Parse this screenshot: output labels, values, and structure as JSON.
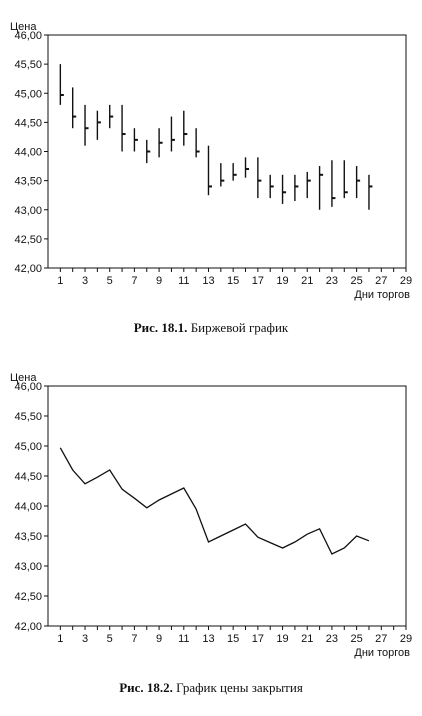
{
  "figures": [
    {
      "caption_label": "Рис. 18.1.",
      "caption_text": " Биржевой график"
    },
    {
      "caption_label": "Рис. 18.2.",
      "caption_text": " График цены закрытия"
    }
  ],
  "chart_data": [
    {
      "type": "ohlc",
      "ylabel": "Цена",
      "xlabel": "Дни торгов",
      "ylim": [
        42.0,
        46.0
      ],
      "xlim": [
        0,
        29
      ],
      "y_ticks": [
        "42,00",
        "42,50",
        "43,00",
        "43,50",
        "44,00",
        "44,50",
        "45,00",
        "45,50",
        "46,00"
      ],
      "x_ticks": [
        "1",
        "3",
        "5",
        "7",
        "9",
        "11",
        "13",
        "15",
        "17",
        "19",
        "21",
        "23",
        "25",
        "27",
        "29"
      ],
      "bars": [
        {
          "x": 1,
          "high": 45.5,
          "low": 44.8,
          "close": 44.97
        },
        {
          "x": 2,
          "high": 45.1,
          "low": 44.4,
          "close": 44.6
        },
        {
          "x": 3,
          "high": 44.8,
          "low": 44.1,
          "close": 44.4
        },
        {
          "x": 4,
          "high": 44.7,
          "low": 44.2,
          "close": 44.5
        },
        {
          "x": 5,
          "high": 44.8,
          "low": 44.4,
          "close": 44.6
        },
        {
          "x": 6,
          "high": 44.8,
          "low": 44.0,
          "close": 44.3
        },
        {
          "x": 7,
          "high": 44.4,
          "low": 44.0,
          "close": 44.2
        },
        {
          "x": 8,
          "high": 44.2,
          "low": 43.8,
          "close": 44.0
        },
        {
          "x": 9,
          "high": 44.4,
          "low": 43.9,
          "close": 44.15
        },
        {
          "x": 10,
          "high": 44.6,
          "low": 44.0,
          "close": 44.2
        },
        {
          "x": 11,
          "high": 44.7,
          "low": 44.1,
          "close": 44.3
        },
        {
          "x": 12,
          "high": 44.4,
          "low": 43.9,
          "close": 44.0
        },
        {
          "x": 13,
          "high": 44.1,
          "low": 43.25,
          "close": 43.4
        },
        {
          "x": 14,
          "high": 43.8,
          "low": 43.4,
          "close": 43.5
        },
        {
          "x": 15,
          "high": 43.8,
          "low": 43.5,
          "close": 43.6
        },
        {
          "x": 16,
          "high": 43.9,
          "low": 43.55,
          "close": 43.7
        },
        {
          "x": 17,
          "high": 43.9,
          "low": 43.2,
          "close": 43.5
        },
        {
          "x": 18,
          "high": 43.6,
          "low": 43.2,
          "close": 43.4
        },
        {
          "x": 19,
          "high": 43.6,
          "low": 43.1,
          "close": 43.3
        },
        {
          "x": 20,
          "high": 43.6,
          "low": 43.15,
          "close": 43.4
        },
        {
          "x": 21,
          "high": 43.65,
          "low": 43.2,
          "close": 43.5
        },
        {
          "x": 22,
          "high": 43.75,
          "low": 43.0,
          "close": 43.6
        },
        {
          "x": 23,
          "high": 43.85,
          "low": 43.05,
          "close": 43.2
        },
        {
          "x": 24,
          "high": 43.85,
          "low": 43.2,
          "close": 43.3
        },
        {
          "x": 25,
          "high": 43.75,
          "low": 43.2,
          "close": 43.5
        },
        {
          "x": 26,
          "high": 43.6,
          "low": 43.0,
          "close": 43.4
        }
      ]
    },
    {
      "type": "line",
      "ylabel": "Цена",
      "xlabel": "Дни торгов",
      "ylim": [
        42.0,
        46.0
      ],
      "xlim": [
        0,
        29
      ],
      "y_ticks": [
        "42,00",
        "42,50",
        "43,00",
        "43,50",
        "44,00",
        "44,50",
        "45,00",
        "45,50",
        "46,00"
      ],
      "x_ticks": [
        "1",
        "3",
        "5",
        "7",
        "9",
        "11",
        "13",
        "15",
        "17",
        "19",
        "21",
        "23",
        "25",
        "27",
        "29"
      ],
      "x": [
        1,
        2,
        3,
        4,
        5,
        6,
        7,
        8,
        9,
        10,
        11,
        12,
        13,
        14,
        15,
        16,
        17,
        18,
        19,
        20,
        21,
        22,
        23,
        24,
        25,
        26
      ],
      "y": [
        44.97,
        44.6,
        44.37,
        44.48,
        44.6,
        44.28,
        44.13,
        43.97,
        44.1,
        44.2,
        44.3,
        43.95,
        43.4,
        43.5,
        43.6,
        43.7,
        43.48,
        43.39,
        43.3,
        43.4,
        43.53,
        43.62,
        43.2,
        43.3,
        43.5,
        43.42
      ]
    }
  ]
}
